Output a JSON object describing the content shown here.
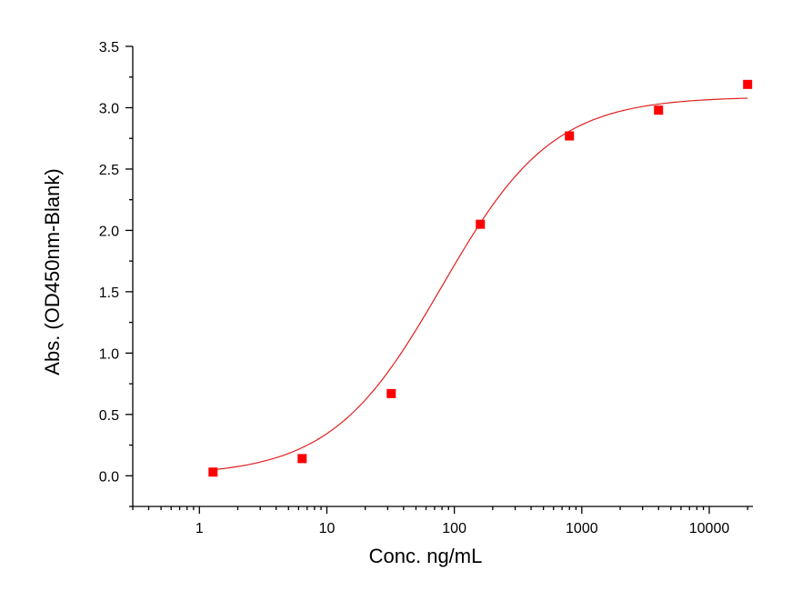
{
  "chart_data": {
    "type": "scatter",
    "title": "",
    "xlabel": "Conc. ng/mL",
    "ylabel": "Abs. (OD450nm-Blank)",
    "x_scale": "log",
    "xlim": [
      0.3,
      22000
    ],
    "ylim": [
      -0.25,
      3.5
    ],
    "x_ticks": [
      1,
      10,
      100,
      1000,
      10000
    ],
    "x_tick_labels": [
      "1",
      "10",
      "100",
      "1000",
      "10000"
    ],
    "y_ticks": [
      0.0,
      0.5,
      1.0,
      1.5,
      2.0,
      2.5,
      3.0,
      3.5
    ],
    "y_tick_labels": [
      "0.0",
      "0.5",
      "1.0",
      "1.5",
      "2.0",
      "2.5",
      "3.0",
      "3.5"
    ],
    "grid": false,
    "legend": "none",
    "marker_color": "#ff0000",
    "fit_color": "#e02020",
    "series": [
      {
        "x": [
          1.28,
          6.4,
          32,
          160,
          800,
          4000,
          20000
        ],
        "y": [
          0.03,
          0.14,
          0.67,
          2.05,
          2.77,
          2.98,
          3.19
        ]
      }
    ],
    "fit_curve": {
      "type": "4PL",
      "bottom": 0.0,
      "top": 3.09,
      "ec50": 80,
      "hill": 1.0,
      "x_range": [
        1.28,
        20000
      ]
    }
  }
}
